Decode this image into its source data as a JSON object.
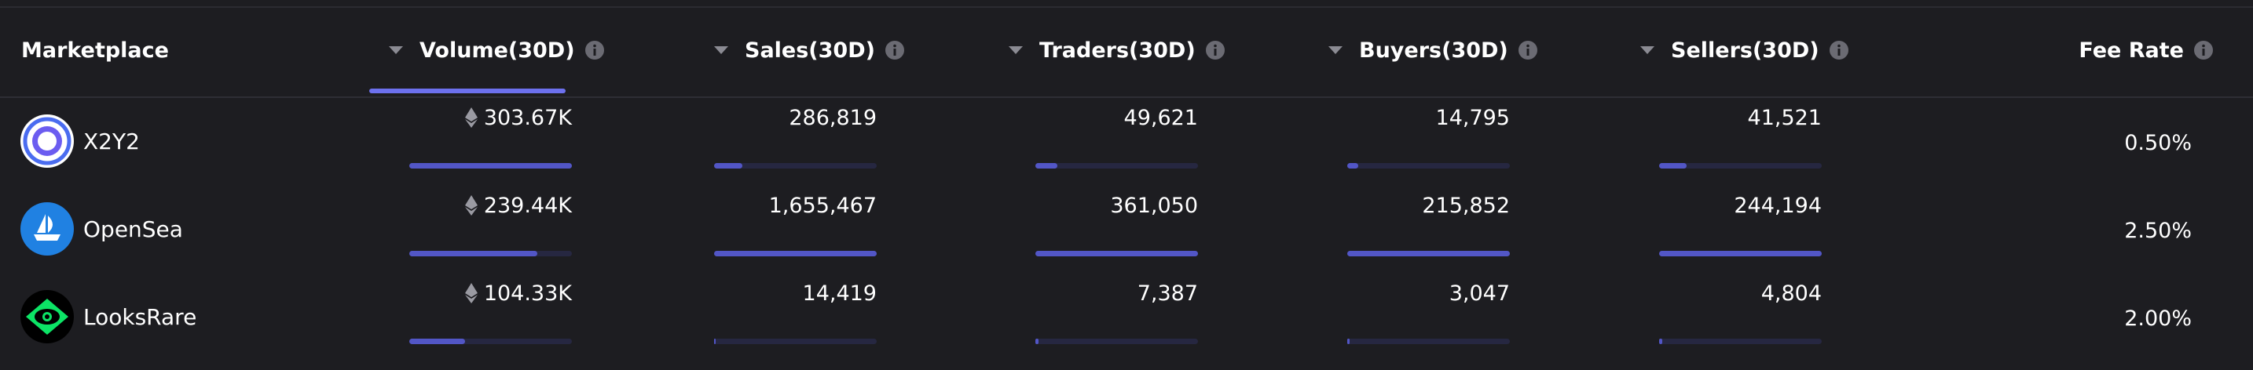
{
  "header": {
    "columns": [
      "Marketplace",
      "Volume(30D)",
      "Sales(30D)",
      "Traders(30D)",
      "Buyers(30D)",
      "Sellers(30D)",
      "Fee Rate"
    ]
  },
  "rows": [
    {
      "name": "X2Y2",
      "cells": [
        "303.67K",
        "286,819",
        "49,621",
        "14,795",
        "41,521"
      ],
      "fee": "0.50%"
    },
    {
      "name": "OpenSea",
      "cells": [
        "239.44K",
        "1,655,467",
        "361,050",
        "215,852",
        "244,194"
      ],
      "fee": "2.50%"
    },
    {
      "name": "LooksRare",
      "cells": [
        "104.33K",
        "14,419",
        "7,387",
        "3,047",
        "4,804"
      ],
      "fee": "2.00%"
    }
  ]
}
